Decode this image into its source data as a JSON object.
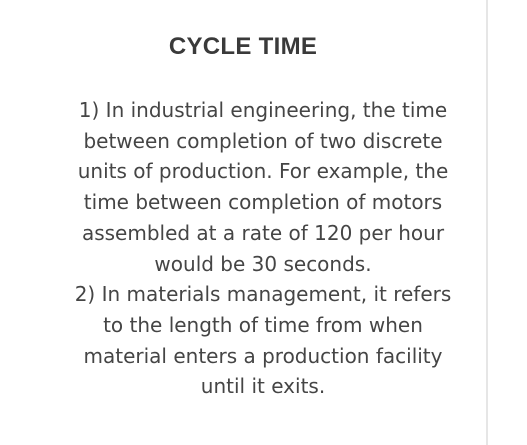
{
  "entry": {
    "title": "CYCLE TIME",
    "definition_1": "1) In industrial engineering, the time between completion of two discrete units of production. For example, the time between completion of motors assembled at a rate of 120 per hour would be 30 seconds.",
    "definition_2": "2) In materials management, it refers to the length of time from when material enters a production facility until it exits."
  }
}
